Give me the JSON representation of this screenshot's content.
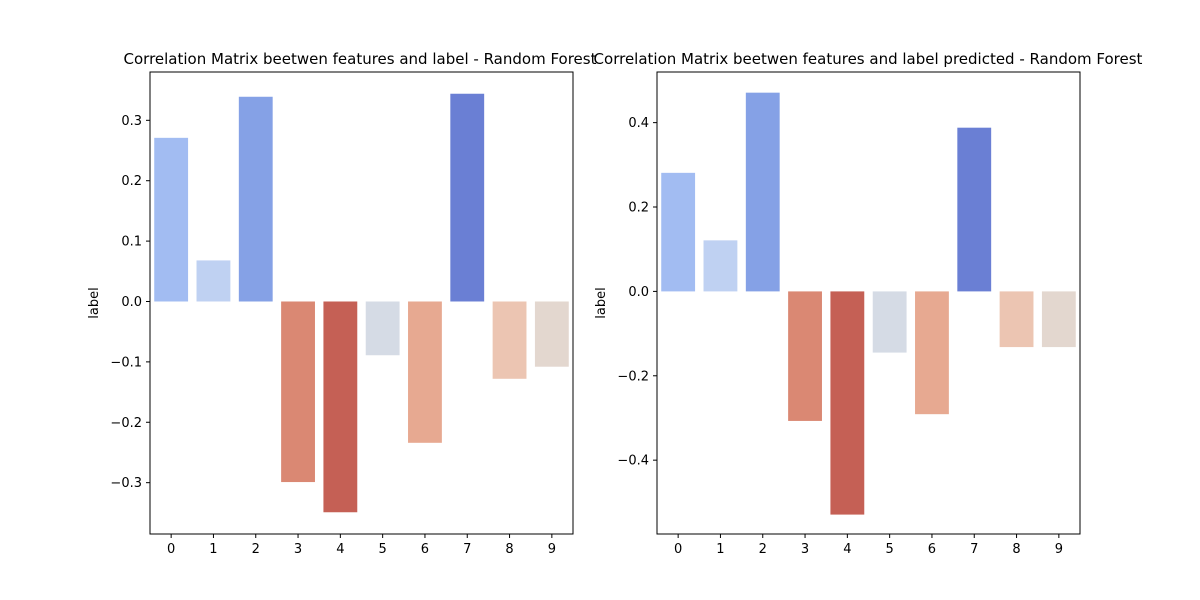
{
  "chart_data": [
    {
      "type": "bar",
      "title": "Correlation Matrix beetwen features and label - Random Forest",
      "xlabel": "",
      "ylabel": "label",
      "categories": [
        "0",
        "1",
        "2",
        "3",
        "4",
        "5",
        "6",
        "7",
        "8",
        "9"
      ],
      "values": [
        0.271,
        0.068,
        0.339,
        -0.299,
        -0.349,
        -0.089,
        -0.234,
        0.344,
        -0.128,
        -0.108
      ],
      "ylim": [
        -0.385,
        0.38
      ],
      "yticks": [
        0.3,
        0.2,
        0.1,
        0.0,
        -0.1,
        -0.2,
        -0.3
      ],
      "ytick_labels": [
        "0.3",
        "0.2",
        "0.1",
        "0.0",
        "−0.1",
        "−0.2",
        "−0.3"
      ],
      "bar_colors": [
        "#a2bcf2",
        "#bfd1f2",
        "#85a1e6",
        "#da8873",
        "#c56055",
        "#d5dbe5",
        "#e7a991",
        "#6a7fd4",
        "#ecc5b2",
        "#e3d7cf"
      ],
      "grid": false,
      "legend": "none"
    },
    {
      "type": "bar",
      "title": "Correlation Matrix beetwen features and label predicted - Random Forest",
      "xlabel": "",
      "ylabel": "label",
      "categories": [
        "0",
        "1",
        "2",
        "3",
        "4",
        "5",
        "6",
        "7",
        "8",
        "9"
      ],
      "values": [
        0.281,
        0.121,
        0.471,
        -0.307,
        -0.529,
        -0.145,
        -0.291,
        0.388,
        -0.132,
        -0.132
      ],
      "ylim": [
        -0.575,
        0.52
      ],
      "yticks": [
        0.4,
        0.2,
        0.0,
        -0.2,
        -0.4
      ],
      "ytick_labels": [
        "0.4",
        "0.2",
        "0.0",
        "−0.2",
        "−0.4"
      ],
      "bar_colors": [
        "#a2bcf2",
        "#bfd1f2",
        "#85a1e6",
        "#da8873",
        "#c56055",
        "#d5dbe5",
        "#e7a991",
        "#6a7fd4",
        "#ecc5b2",
        "#e3d7cf"
      ],
      "grid": false,
      "legend": "none"
    }
  ]
}
